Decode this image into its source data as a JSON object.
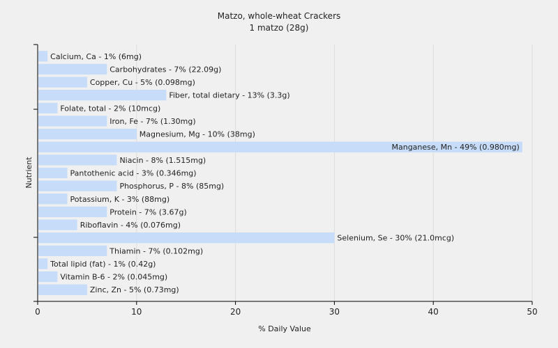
{
  "chart_data": {
    "type": "bar",
    "orientation": "horizontal",
    "title": "Matzo, whole-wheat Crackers",
    "subtitle": "1 matzo (28g)",
    "xlabel": "% Daily Value",
    "ylabel": "Nutrient",
    "xlim": [
      0,
      50
    ],
    "xticks": [
      0,
      10,
      20,
      30,
      40,
      50
    ],
    "grid": true,
    "bar_color": "#c6dcf8",
    "categories": [
      "Calcium, Ca",
      "Carbohydrates",
      "Copper, Cu",
      "Fiber, total dietary",
      "Folate, total",
      "Iron, Fe",
      "Magnesium, Mg",
      "Manganese, Mn",
      "Niacin",
      "Pantothenic acid",
      "Phosphorus, P",
      "Potassium, K",
      "Protein",
      "Riboflavin",
      "Selenium, Se",
      "Thiamin",
      "Total lipid (fat)",
      "Vitamin B-6",
      "Zinc, Zn"
    ],
    "values": [
      1,
      7,
      5,
      13,
      2,
      7,
      10,
      49,
      8,
      3,
      8,
      3,
      7,
      4,
      30,
      7,
      1,
      2,
      5
    ],
    "labels": [
      "Calcium, Ca - 1% (6mg)",
      "Carbohydrates - 7% (22.09g)",
      "Copper, Cu - 5% (0.098mg)",
      "Fiber, total dietary - 13% (3.3g)",
      "Folate, total - 2% (10mcg)",
      "Iron, Fe - 7% (1.30mg)",
      "Magnesium, Mg - 10% (38mg)",
      "Manganese, Mn - 49% (0.980mg)",
      "Niacin - 8% (1.515mg)",
      "Pantothenic acid - 3% (0.346mg)",
      "Phosphorus, P - 8% (85mg)",
      "Potassium, K - 3% (88mg)",
      "Protein - 7% (3.67g)",
      "Riboflavin - 4% (0.076mg)",
      "Selenium, Se - 30% (21.0mcg)",
      "Thiamin - 7% (0.102mg)",
      "Total lipid (fat) - 1% (0.42g)",
      "Vitamin B-6 - 2% (0.045mg)",
      "Zinc, Zn - 5% (0.73mg)"
    ]
  }
}
